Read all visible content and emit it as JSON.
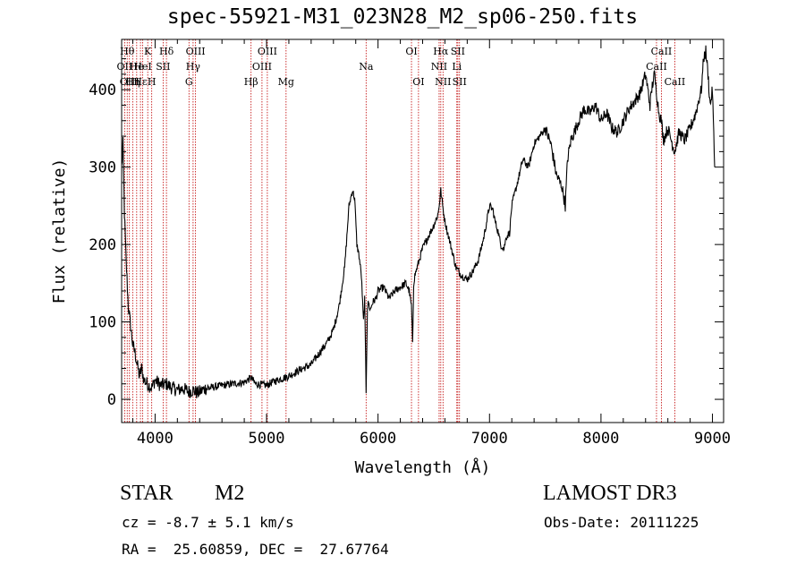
{
  "title": "spec-55921-M31_023N28_M2_sp06-250.fits",
  "footer": {
    "class_label": "STAR",
    "subclass": "M2",
    "cz_text": "cz = -8.7 ± 5.1 km/s",
    "coords_text": "RA =  25.60859, DEC =  27.67764",
    "survey": "LAMOST DR3",
    "obs_date": "Obs-Date: 20111225"
  },
  "chart_data": {
    "type": "line",
    "title": "spec-55921-M31_023N28_M2_sp06-250.fits",
    "xlabel": "Wavelength (Å)",
    "ylabel": "Flux (relative)",
    "xlim": [
      3700,
      9100
    ],
    "ylim": [
      -30,
      465
    ],
    "xticks": [
      4000,
      5000,
      6000,
      7000,
      8000,
      9000
    ],
    "yticks": [
      0,
      100,
      200,
      300,
      400
    ],
    "series": [
      {
        "name": "spectrum",
        "color": "#000000",
        "x": [
          3700,
          3712,
          3725,
          3740,
          3760,
          3780,
          3800,
          3820,
          3840,
          3860,
          3880,
          3900,
          3930,
          3970,
          4000,
          4050,
          4100,
          4150,
          4200,
          4250,
          4300,
          4340,
          4380,
          4450,
          4500,
          4600,
          4700,
          4800,
          4861,
          4900,
          5000,
          5050,
          5100,
          5200,
          5300,
          5400,
          5500,
          5550,
          5600,
          5650,
          5700,
          5740,
          5770,
          5790,
          5810,
          5830,
          5850,
          5870,
          5880,
          5893,
          5905,
          5915,
          5930,
          5950,
          5980,
          6000,
          6050,
          6100,
          6150,
          6200,
          6250,
          6280,
          6300,
          6310,
          6320,
          6330,
          6360,
          6400,
          6450,
          6500,
          6540,
          6563,
          6580,
          6600,
          6650,
          6700,
          6750,
          6800,
          6850,
          6900,
          6950,
          7000,
          7030,
          7050,
          7080,
          7100,
          7130,
          7150,
          7180,
          7200,
          7250,
          7300,
          7350,
          7400,
          7450,
          7500,
          7550,
          7600,
          7650,
          7680,
          7700,
          7730,
          7760,
          7800,
          7850,
          7900,
          7950,
          8000,
          8050,
          8100,
          8150,
          8200,
          8250,
          8300,
          8350,
          8400,
          8420,
          8440,
          8460,
          8480,
          8500,
          8520,
          8542,
          8560,
          8600,
          8640,
          8662,
          8700,
          8750,
          8800,
          8850,
          8900,
          8920,
          8940,
          8960,
          8980,
          9000,
          9020
        ],
        "y": [
          300,
          330,
          240,
          180,
          120,
          95,
          70,
          60,
          45,
          30,
          40,
          25,
          20,
          15,
          25,
          18,
          20,
          15,
          12,
          14,
          10,
          12,
          8,
          14,
          15,
          18,
          20,
          22,
          28,
          20,
          18,
          22,
          25,
          30,
          38,
          45,
          65,
          75,
          90,
          120,
          170,
          250,
          270,
          260,
          200,
          185,
          160,
          100,
          130,
          10,
          120,
          125,
          115,
          125,
          130,
          140,
          145,
          130,
          140,
          145,
          150,
          140,
          120,
          70,
          150,
          160,
          175,
          195,
          210,
          225,
          240,
          270,
          250,
          230,
          200,
          170,
          160,
          155,
          165,
          180,
          210,
          250,
          245,
          230,
          215,
          200,
          195,
          210,
          215,
          250,
          280,
          310,
          300,
          330,
          340,
          350,
          330,
          290,
          275,
          250,
          310,
          335,
          345,
          360,
          375,
          370,
          380,
          360,
          370,
          350,
          345,
          360,
          375,
          385,
          395,
          420,
          400,
          380,
          405,
          420,
          395,
          370,
          360,
          335,
          350,
          330,
          320,
          345,
          335,
          350,
          370,
          400,
          440,
          450,
          420,
          380,
          400,
          300
        ]
      }
    ],
    "lines": [
      {
        "x": 3727,
        "label": "OII",
        "row": 2
      },
      {
        "x": 3750,
        "label": "Hθ",
        "row": 1
      },
      {
        "x": 3770,
        "label": "OIII",
        "row": 3
      },
      {
        "x": 3799,
        "label": "Hη",
        "row": 3
      },
      {
        "x": 3835,
        "label": "He",
        "row": 2
      },
      {
        "x": 3869,
        "label": "Hε",
        "row": 3
      },
      {
        "x": 3889,
        "label": "HeI",
        "row": 2
      },
      {
        "x": 3934,
        "label": "K",
        "row": 1
      },
      {
        "x": 3970,
        "label": "H",
        "row": 3
      },
      {
        "x": 4072,
        "label": "SII",
        "row": 2
      },
      {
        "x": 4102,
        "label": "Hδ",
        "row": 1
      },
      {
        "x": 4304,
        "label": "G",
        "row": 3
      },
      {
        "x": 4341,
        "label": "Hγ",
        "row": 2
      },
      {
        "x": 4363,
        "label": "OIII",
        "row": 1
      },
      {
        "x": 4861,
        "label": "Hβ",
        "row": 3
      },
      {
        "x": 4959,
        "label": "OIII",
        "row": 2
      },
      {
        "x": 5007,
        "label": "OIII",
        "row": 1
      },
      {
        "x": 5175,
        "label": "Mg",
        "row": 3
      },
      {
        "x": 5893,
        "label": "Na",
        "row": 2
      },
      {
        "x": 6300,
        "label": "OI",
        "row": 1
      },
      {
        "x": 6363,
        "label": "OI",
        "row": 3
      },
      {
        "x": 6548,
        "label": "NII",
        "row": 2
      },
      {
        "x": 6563,
        "label": "Hα",
        "row": 1
      },
      {
        "x": 6583,
        "label": "NII",
        "row": 3
      },
      {
        "x": 6707,
        "label": "Li",
        "row": 2
      },
      {
        "x": 6716,
        "label": "SII",
        "row": 1
      },
      {
        "x": 6731,
        "label": "SII",
        "row": 3
      },
      {
        "x": 8498,
        "label": "CaII",
        "row": 2
      },
      {
        "x": 8542,
        "label": "CaII",
        "row": 1
      },
      {
        "x": 8662,
        "label": "CaII",
        "row": 3
      }
    ]
  }
}
